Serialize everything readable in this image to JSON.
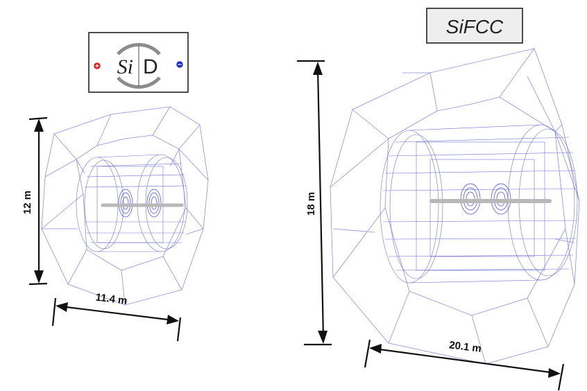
{
  "left_detector": {
    "logo": {
      "text_si": "Si",
      "text_d": "D",
      "plus_color": "#d62020",
      "minus_color": "#2030c8"
    },
    "height_label": "12 m",
    "length_label": "11.4 m"
  },
  "right_detector": {
    "title": "SiFCC",
    "height_label": "18 m",
    "length_label": "20.1 m"
  },
  "colors": {
    "wireframe": "#8a8fd6",
    "tracker_disks": "#3a3fe0",
    "dimension_lines": "#111111"
  }
}
